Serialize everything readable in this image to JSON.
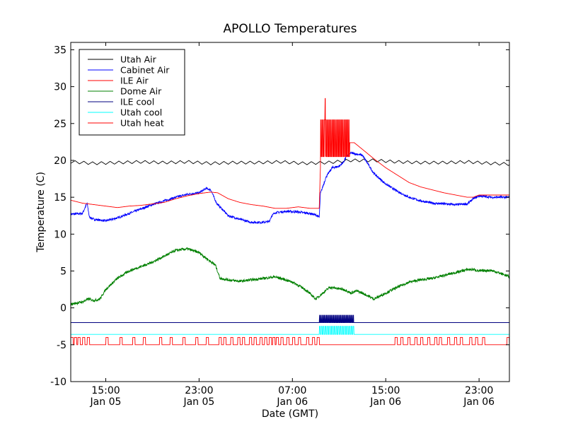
{
  "chart_data": {
    "type": "line",
    "title": "APOLLO Temperatures",
    "xlabel": "Date (GMT)",
    "ylabel": "Temperature (C)",
    "x_unit": "hours since 2:00 GMT Jan 05 (Mountain time 19:00 Jan 04)",
    "xlim": [
      8.0,
      45.6
    ],
    "ylim": [
      -10,
      36
    ],
    "yticks": [
      -10,
      -5,
      0,
      5,
      10,
      15,
      20,
      25,
      30,
      35
    ],
    "yticklabels": [
      "-10",
      "-5",
      "0",
      "5",
      "10",
      "15",
      "20",
      "25",
      "30",
      "35"
    ],
    "xticks": [
      {
        "x": 11,
        "time": "15:00",
        "date": "Jan 05"
      },
      {
        "x": 19,
        "time": "23:00",
        "date": "Jan 05"
      },
      {
        "x": 27,
        "time": "07:00",
        "date": "Jan 06"
      },
      {
        "x": 35,
        "time": "15:00",
        "date": "Jan 06"
      },
      {
        "x": 43,
        "time": "23:00",
        "date": "Jan 06"
      }
    ],
    "legend_position": "top-left",
    "series": [
      {
        "name": "Utah Air",
        "color": "#000000",
        "x": [
          8.0,
          10.0,
          12.0,
          14.0,
          16.0,
          18.0,
          20.0,
          22.0,
          24.0,
          26.0,
          28.0,
          30.0,
          32.0,
          34.0,
          36.0,
          38.0,
          40.0,
          42.0,
          44.0,
          45.6
        ],
        "values": [
          19.8,
          19.6,
          19.7,
          19.8,
          19.7,
          19.8,
          19.6,
          19.7,
          19.7,
          19.8,
          19.6,
          19.7,
          20.0,
          20.0,
          19.8,
          19.7,
          19.7,
          19.8,
          19.6,
          19.5
        ],
        "ripple": {
          "period": 0.75,
          "amplitude": 0.4
        }
      },
      {
        "name": "Cabinet Air",
        "color": "#0000ff",
        "x": [
          8.0,
          9.0,
          9.4,
          9.6,
          10.0,
          11.0,
          12.0,
          13.0,
          14.0,
          15.0,
          16.0,
          17.0,
          18.0,
          19.0,
          19.6,
          20.0,
          20.5,
          21.5,
          22.5,
          23.5,
          24.5,
          25.0,
          25.2,
          25.5,
          26.5,
          27.5,
          28.5,
          29.0,
          29.3,
          29.4,
          29.9,
          30.4,
          31.0,
          31.4,
          31.6,
          32.0,
          33.0,
          34.0,
          35.0,
          36.0,
          37.0,
          38.0,
          39.0,
          40.0,
          41.0,
          42.0,
          42.5,
          43.0,
          44.0,
          45.0,
          45.6
        ],
        "values": [
          12.7,
          12.8,
          14.2,
          12.3,
          12.0,
          11.8,
          12.2,
          12.8,
          13.4,
          14.0,
          14.5,
          15.0,
          15.4,
          15.6,
          16.2,
          16.0,
          14.2,
          12.5,
          12.0,
          11.6,
          11.6,
          11.7,
          12.4,
          12.9,
          13.1,
          13.0,
          12.8,
          12.6,
          12.3,
          15.5,
          17.8,
          19.0,
          19.2,
          19.8,
          20.5,
          21.0,
          20.7,
          18.2,
          16.8,
          15.8,
          15.0,
          14.5,
          14.2,
          14.1,
          14.0,
          14.1,
          14.8,
          15.2,
          15.0,
          15.0,
          15.0
        ],
        "noise": 0.15
      },
      {
        "name": "ILE Air",
        "color": "#ff0000",
        "x": [
          8.0,
          9.0,
          10.0,
          11.0,
          12.0,
          13.0,
          14.0,
          15.0,
          16.0,
          17.0,
          18.0,
          19.0,
          20.0,
          20.6,
          21.5,
          22.5,
          23.5,
          24.5,
          25.5,
          26.5,
          27.5,
          28.5,
          29.0,
          29.3,
          29.4,
          29.9,
          30.5,
          31.0,
          31.5,
          31.8,
          32.3,
          33.0,
          34.0,
          35.0,
          36.0,
          37.0,
          38.0,
          39.0,
          40.0,
          41.0,
          42.0,
          42.5,
          43.0,
          44.0,
          45.6
        ],
        "values": [
          14.6,
          14.2,
          14.0,
          13.8,
          13.6,
          13.8,
          13.9,
          14.1,
          14.3,
          14.8,
          15.2,
          15.5,
          15.7,
          15.6,
          14.8,
          14.3,
          14.0,
          13.8,
          13.5,
          13.5,
          13.7,
          13.5,
          13.5,
          13.5,
          19.0,
          20.5,
          20.5,
          21.0,
          21.8,
          22.4,
          22.4,
          21.5,
          20.2,
          19.0,
          18.0,
          17.0,
          16.4,
          16.0,
          15.6,
          15.3,
          15.0,
          15.0,
          15.3,
          15.3,
          15.3
        ],
        "burst": {
          "from": 29.4,
          "to": 31.9,
          "low": 20.5,
          "high": 25.5,
          "period": 0.11,
          "spike": 28.4
        }
      },
      {
        "name": "Dome Air",
        "color": "#008000",
        "x": [
          8.0,
          9.0,
          9.5,
          10.0,
          10.5,
          11.0,
          12.0,
          13.0,
          14.0,
          15.0,
          16.0,
          17.0,
          18.0,
          19.0,
          19.8,
          20.4,
          20.8,
          21.5,
          22.5,
          23.5,
          24.5,
          25.5,
          26.0,
          27.0,
          28.0,
          28.6,
          29.0,
          29.6,
          30.2,
          31.0,
          31.6,
          32.0,
          32.5,
          33.0,
          34.0,
          35.0,
          36.0,
          37.0,
          38.0,
          39.0,
          40.0,
          41.0,
          42.0,
          42.5,
          43.0,
          44.0,
          45.0,
          45.6
        ],
        "values": [
          0.5,
          0.8,
          1.2,
          1.0,
          1.2,
          2.5,
          4.0,
          5.0,
          5.6,
          6.2,
          7.0,
          7.8,
          8.0,
          7.5,
          6.5,
          5.8,
          4.0,
          3.8,
          3.6,
          3.8,
          4.0,
          4.2,
          4.0,
          3.5,
          2.6,
          1.8,
          1.2,
          2.0,
          2.8,
          2.6,
          2.4,
          2.0,
          2.3,
          2.0,
          1.2,
          2.0,
          2.8,
          3.5,
          3.8,
          4.0,
          4.4,
          4.8,
          5.2,
          5.2,
          5.0,
          5.1,
          4.6,
          4.2
        ],
        "noise": 0.18
      },
      {
        "name": "ILE cool",
        "color": "#000080",
        "x": [
          8.0,
          45.6
        ],
        "values": [
          -2.0,
          -2.0
        ],
        "burst": {
          "from": 29.3,
          "to": 32.3,
          "low": -2.0,
          "high": -1.0,
          "period": 0.1
        }
      },
      {
        "name": "Utah cool",
        "color": "#00ffff",
        "x": [
          8.0,
          45.6
        ],
        "values": [
          -3.6,
          -3.6
        ],
        "burst": {
          "from": 29.3,
          "to": 32.3,
          "low": -3.6,
          "high": -2.5,
          "period": 0.16
        }
      },
      {
        "name": "Utah heat",
        "color": "#ff0000",
        "x": [
          8.0,
          8.1,
          8.15,
          45.6
        ],
        "values": [
          -6.2,
          -6.2,
          -5.0,
          -5.0
        ],
        "pulses": {
          "low": -5.0,
          "high": -4.0,
          "starts": [
            8.0,
            8.3,
            8.6,
            9.0,
            9.4,
            11.0,
            12.2,
            13.3,
            14.2,
            15.6,
            16.5,
            17.6,
            18.7,
            19.6,
            20.7,
            21.1,
            21.7,
            22.3,
            22.7,
            23.3,
            23.7,
            24.2,
            24.6,
            25.0,
            25.3,
            25.6,
            26.0,
            26.5,
            27.0,
            27.5,
            28.2,
            28.7,
            29.1,
            35.8,
            36.3,
            36.9,
            37.5,
            38.0,
            38.6,
            39.2,
            39.6,
            40.3,
            40.9,
            41.4,
            42.2,
            42.7,
            43.3,
            45.4
          ],
          "width": 0.2
        }
      }
    ]
  }
}
